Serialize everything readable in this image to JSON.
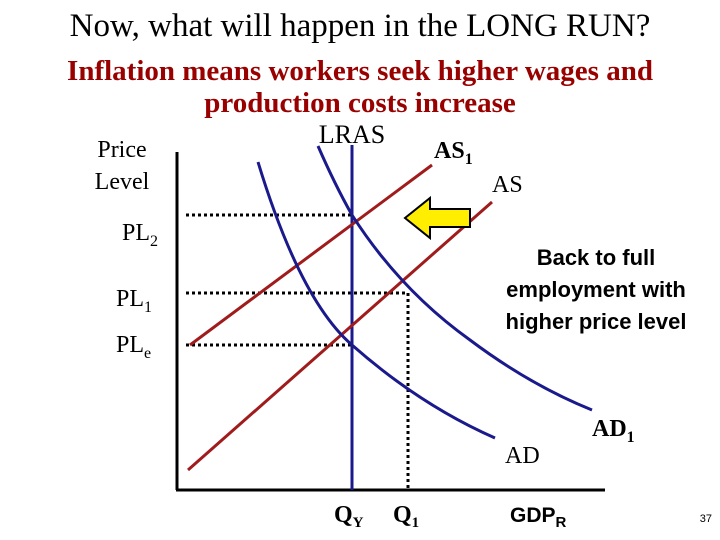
{
  "title": "Now, what will happen in the LONG RUN?",
  "subtitle": [
    "Inflation means workers seek higher wages and",
    "production costs increase"
  ],
  "y_axis_label": [
    "Price",
    "Level"
  ],
  "price_levels": [
    {
      "base": "PL",
      "sub": "2"
    },
    {
      "base": "PL",
      "sub": "1"
    },
    {
      "base": "PL",
      "sub": "e"
    }
  ],
  "curves": {
    "lras": "LRAS",
    "as1": {
      "base": "AS",
      "sub": "1"
    },
    "as": "AS",
    "ad": "AD",
    "ad1": {
      "base": "AD",
      "sub": "1"
    }
  },
  "quantities": [
    {
      "base": "Q",
      "sub": "Y"
    },
    {
      "base": "Q",
      "sub": "1"
    }
  ],
  "x_axis_label": {
    "base": "GDP",
    "sub": "R"
  },
  "note": [
    "Back to full",
    "employment with",
    "higher price level"
  ],
  "page_number": "37"
}
